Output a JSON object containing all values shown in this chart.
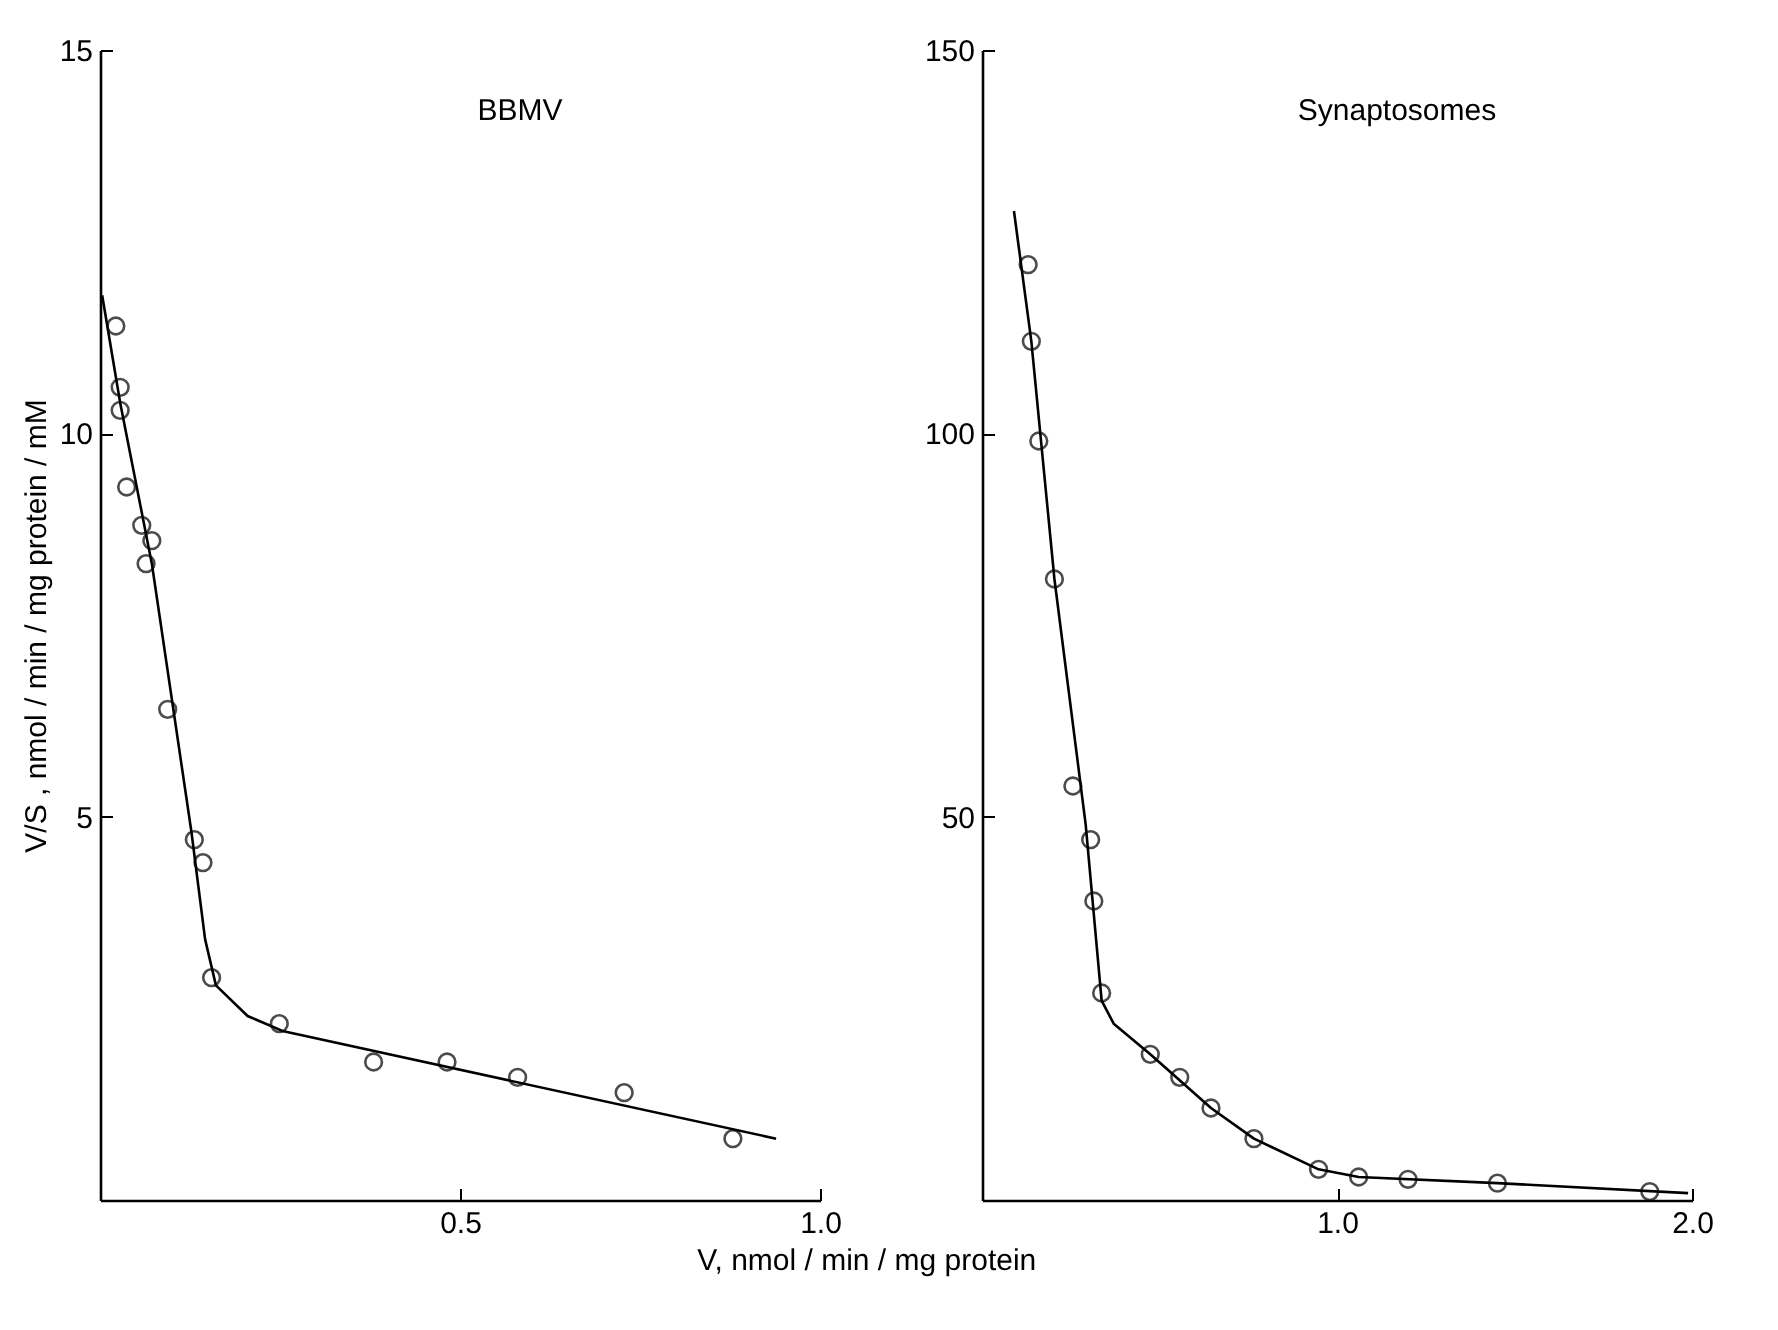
{
  "chart_data": [
    {
      "type": "scatter",
      "title": "BBMV",
      "xlabel": "V, nmol / min / mg protein",
      "ylabel": "V/S , nmol / min / mg protein / mM",
      "grid": false,
      "xlim": [
        0,
        1.0
      ],
      "ylim": [
        0,
        15
      ],
      "xticks": [
        {
          "value": 0.5,
          "label": "0.5"
        },
        {
          "value": 1.0,
          "label": "1.0"
        }
      ],
      "yticks": [
        5,
        10,
        15
      ],
      "series": [
        {
          "color": "#000000",
          "marker": "circle",
          "x": [
            0.022,
            0.028,
            0.028,
            0.037,
            0.058,
            0.072,
            0.064,
            0.094,
            0.131,
            0.143,
            0.155,
            0.249,
            0.38,
            0.482,
            0.58,
            0.728,
            0.879
          ],
          "values": [
            11.4,
            10.6,
            10.3,
            9.3,
            8.8,
            8.6,
            8.3,
            6.4,
            4.7,
            4.4,
            2.9,
            2.3,
            1.8,
            1.8,
            1.6,
            1.4,
            0.8
          ]
        },
        {
          "type": "line",
          "color": "#000000",
          "marker": "none",
          "x": [
            0.003,
            0.028,
            0.072,
            0.127,
            0.146,
            0.161,
            0.205,
            0.255,
            0.939
          ],
          "values": [
            11.8,
            10.4,
            8.3,
            4.8,
            3.4,
            2.8,
            2.4,
            2.2,
            0.8
          ]
        }
      ]
    },
    {
      "type": "scatter",
      "title": "Synaptosomes",
      "grid": false,
      "xlim": [
        0,
        2.0
      ],
      "ylim": [
        0,
        150
      ],
      "xticks": [
        {
          "value": 1.0,
          "label": "1.0"
        },
        {
          "value": 2.0,
          "label": "2.0"
        }
      ],
      "yticks": [
        50,
        100,
        150
      ],
      "series": [
        {
          "color": "#000000",
          "marker": "circle",
          "x": [
            0.13,
            0.139,
            0.16,
            0.204,
            0.256,
            0.306,
            0.315,
            0.337,
            0.474,
            0.557,
            0.645,
            0.766,
            0.948,
            1.061,
            1.2,
            1.452,
            1.881
          ],
          "values": [
            122,
            112,
            99,
            81,
            54,
            47,
            39,
            27,
            19,
            16,
            12,
            8,
            4,
            3,
            2.7,
            2.2,
            1.1
          ]
        },
        {
          "type": "line",
          "color": "#000000",
          "marker": "none",
          "x": [
            0.09,
            0.139,
            0.204,
            0.292,
            0.337,
            0.371,
            0.474,
            0.645,
            0.766,
            0.948,
            1.061,
            1.452,
            1.989
          ],
          "values": [
            129,
            112,
            81,
            49,
            26,
            23,
            19,
            12,
            8,
            4,
            3,
            2.2,
            0.9
          ]
        }
      ]
    }
  ]
}
